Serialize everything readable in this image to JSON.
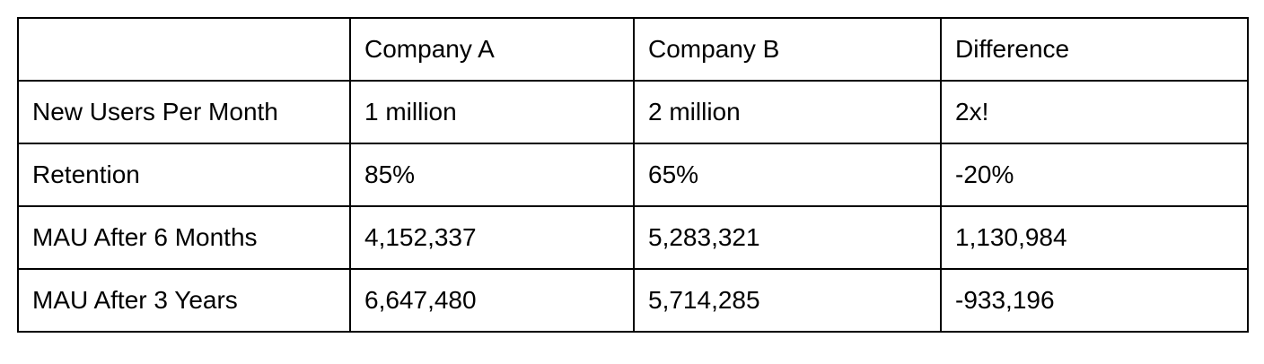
{
  "table": {
    "columns": [
      "Company A",
      "Company B",
      "Difference"
    ],
    "rows": [
      {
        "label": "New Users Per Month",
        "cells": [
          "1 million",
          "2 million",
          "2x!"
        ]
      },
      {
        "label": "Retention",
        "cells": [
          "85%",
          "65%",
          "-20%"
        ]
      },
      {
        "label": "MAU After 6 Months",
        "cells": [
          "4,152,337",
          "5,283,321",
          "1,130,984"
        ]
      },
      {
        "label": "MAU After 3 Years",
        "cells": [
          "6,647,480",
          "5,714,285",
          "-933,196"
        ]
      }
    ]
  }
}
